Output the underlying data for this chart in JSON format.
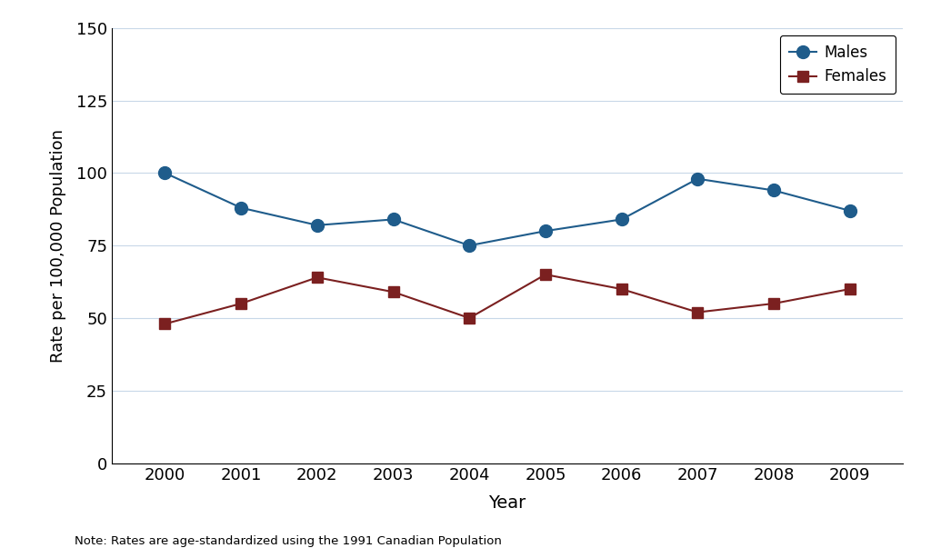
{
  "years": [
    2000,
    2001,
    2002,
    2003,
    2004,
    2005,
    2006,
    2007,
    2008,
    2009
  ],
  "males": [
    100,
    88,
    82,
    84,
    75,
    80,
    84,
    98,
    94,
    87
  ],
  "females": [
    48,
    55,
    64,
    59,
    50,
    65,
    60,
    52,
    55,
    60
  ],
  "male_color": "#1f5c8b",
  "female_color": "#7b2020",
  "ylabel": "Rate per 100,000 Population",
  "xlabel": "Year",
  "ylim": [
    0,
    150
  ],
  "yticks": [
    0,
    25,
    50,
    75,
    100,
    125,
    150
  ],
  "note": "Note: Rates are age-standardized using the 1991 Canadian Population",
  "legend_males": "Males",
  "legend_females": "Females",
  "bg_color": "#ffffff",
  "grid_color": "#c8d8e8"
}
